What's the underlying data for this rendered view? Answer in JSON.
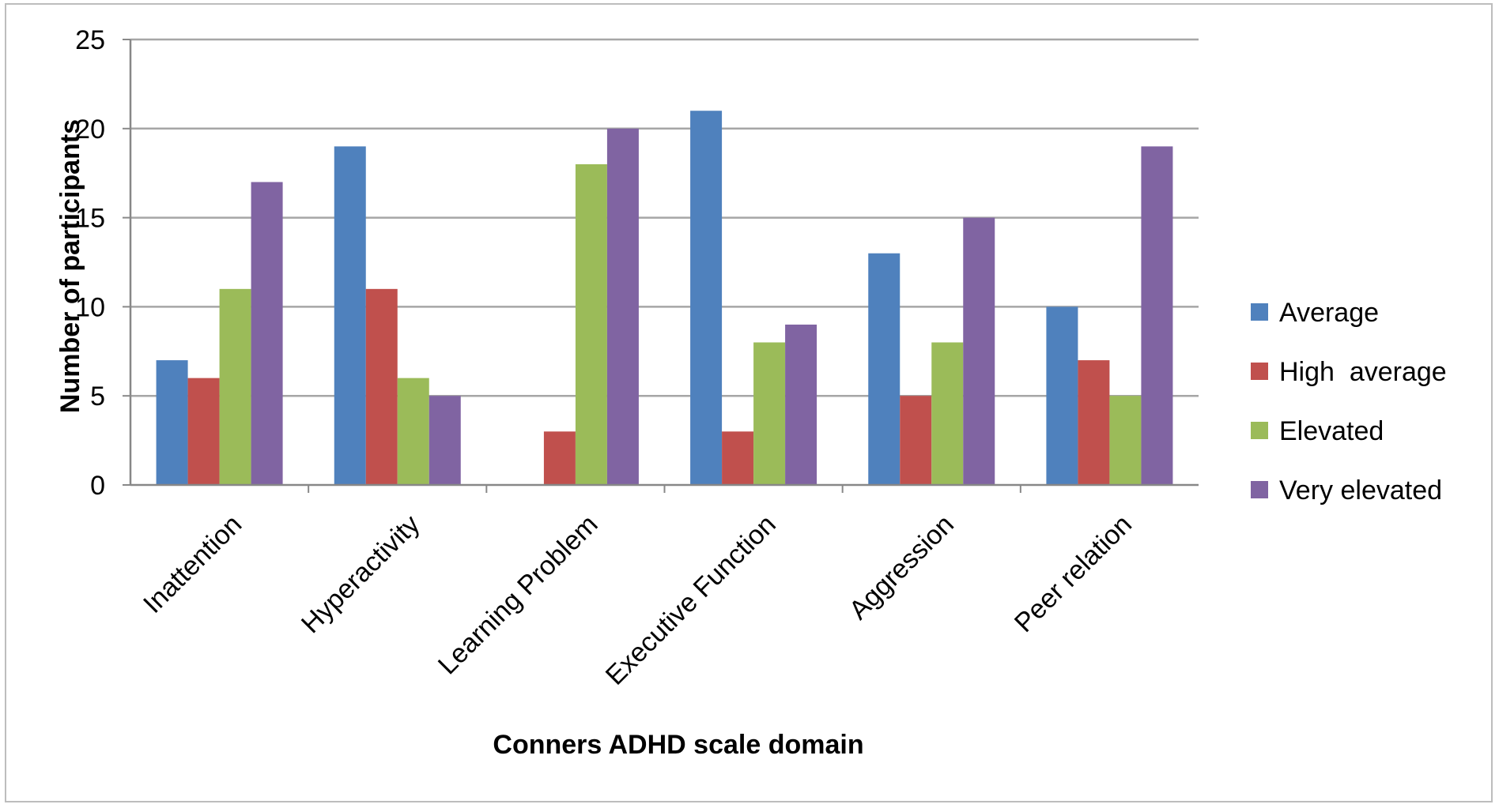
{
  "chart_data": {
    "type": "bar",
    "title": "",
    "xlabel": "Conners ADHD scale domain",
    "ylabel": "Number of participants",
    "ylim": [
      0,
      25
    ],
    "yticks": [
      0,
      5,
      10,
      15,
      20,
      25
    ],
    "grid": true,
    "legend_position": "right",
    "categories": [
      "Inattention",
      "Hyperactivity",
      "Learning Problem",
      "Executive Function",
      "Aggression",
      "Peer relation"
    ],
    "series": [
      {
        "name": "Average",
        "color": "#4F81BD",
        "values": [
          7,
          19,
          0,
          21,
          13,
          10
        ]
      },
      {
        "name": "High  average",
        "color": "#C0504D",
        "values": [
          6,
          11,
          3,
          3,
          5,
          7
        ]
      },
      {
        "name": "Elevated",
        "color": "#9BBB59",
        "values": [
          11,
          6,
          18,
          8,
          8,
          5
        ]
      },
      {
        "name": "Very elevated",
        "color": "#8064A2",
        "values": [
          17,
          5,
          20,
          9,
          15,
          19
        ]
      }
    ]
  }
}
